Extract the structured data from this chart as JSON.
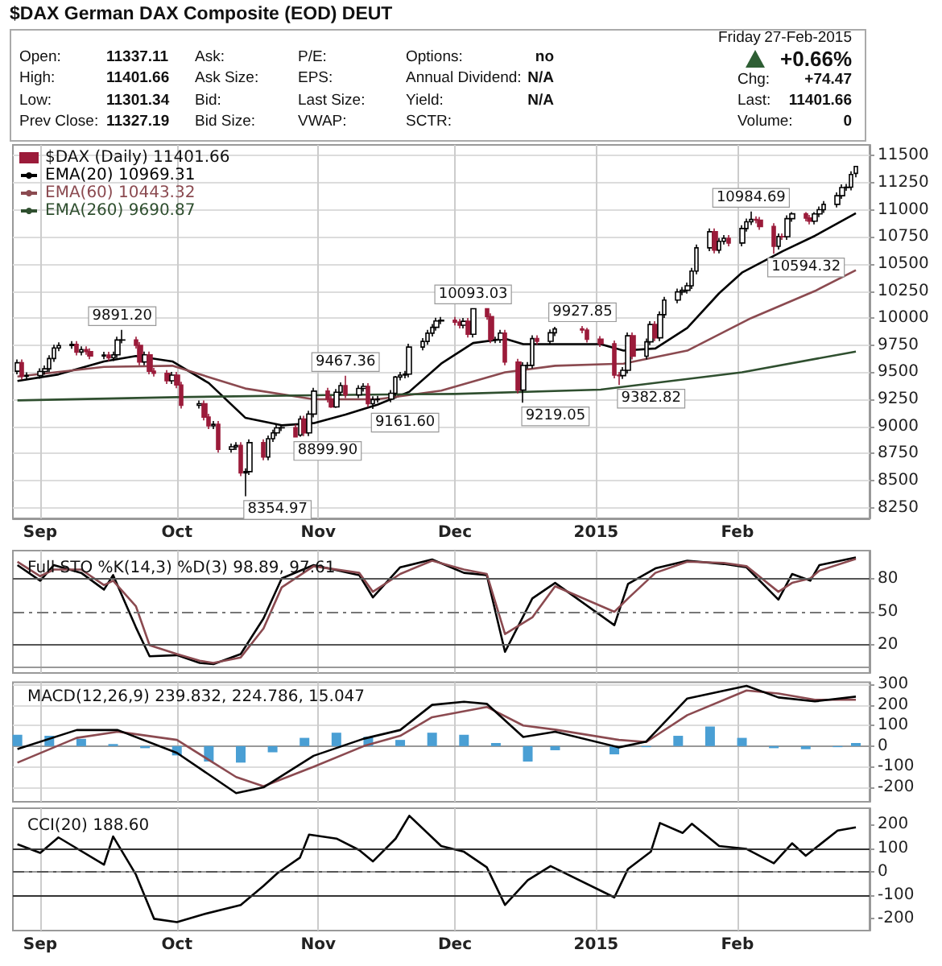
{
  "chart_data": [
    {
      "type": "other",
      "title": "$DAX German DAX Composite (EOD) DEUT",
      "annotations": [
        "Open:",
        "High:",
        "Low:",
        "Prev Close:",
        "11337.11",
        "11401.66",
        "11301.34",
        "11327.19",
        "Ask:",
        "Ask Size:",
        "Bid:",
        "Bid Size:",
        "P/E:",
        "EPS:",
        "Last Size:",
        "VWAP:",
        "Options:",
        "Annual Dividend:",
        "Yield:",
        "SCTR:",
        "no",
        "N/A",
        "N/A",
        "Friday",
        "27-Feb-2015",
        "+0.66%",
        "Chg:",
        "+74.47",
        "Last:",
        "11401.66",
        "Volume:",
        "0"
      ]
    },
    {
      "type": "candlestick",
      "legend": "top left",
      "grid": true,
      "xlim": [
        "2014-08-26",
        "2015-03-02"
      ],
      "xticks": [
        {
          "value": "2014-09-01",
          "label": "Sep"
        },
        {
          "value": "2014-10-01",
          "label": "Oct"
        },
        {
          "value": "2014-11-01",
          "label": "Nov"
        },
        {
          "value": "2014-12-01",
          "label": "Dec"
        },
        {
          "value": "2015-01-01",
          "label": "2015"
        },
        {
          "value": "2015-02-01",
          "label": "Feb"
        }
      ],
      "ylim": [
        8150,
        11600
      ],
      "yticks": [
        8250,
        8500,
        8750,
        9000,
        9250,
        9500,
        9750,
        10000,
        10250,
        10500,
        10750,
        11000,
        11250,
        11500
      ],
      "annotations": [
        {
          "text": "9891.20",
          "x": "2014-09-19",
          "y": 9891.2
        },
        {
          "text": "8354.97",
          "x": "2014-10-16",
          "y": 8354.97
        },
        {
          "text": "8899.90",
          "x": "2014-10-27",
          "y": 8899.9
        },
        {
          "text": "9467.36",
          "x": "2014-11-07",
          "y": 9467.36
        },
        {
          "text": "9161.60",
          "x": "2014-11-13",
          "y": 9161.6
        },
        {
          "text": "10093.03",
          "x": "2014-12-05",
          "y": 10093.03
        },
        {
          "text": "9219.05",
          "x": "2014-12-16",
          "y": 9219.05
        },
        {
          "text": "9927.85",
          "x": "2014-12-29",
          "y": 9927.85
        },
        {
          "text": "9382.82",
          "x": "2015-01-06",
          "y": 9382.82
        },
        {
          "text": "10984.69",
          "x": "2015-02-04",
          "y": 10984.69
        },
        {
          "text": "10594.32",
          "x": "2015-02-09",
          "y": 10594.32
        }
      ],
      "series": [
        {
          "type": "candlestick",
          "name": "$DAX (Daily) 11401.66",
          "colors": [
            "#ffffff",
            "#9b1b3a",
            "#ffffff",
            "#ffffff",
            "#ffffff",
            "#ffffff",
            "#ffffff",
            "#ffffff",
            "#ffffff",
            "#9b1b3a",
            "#ffffff",
            "#9b1b3a",
            "#9b1b3a",
            "#ffffff",
            "#9b1b3a",
            "#ffffff",
            "#ffffff",
            "#ffffff",
            "#9b1b3a",
            "#9b1b3a",
            "#ffffff",
            "#9b1b3a",
            "#9b1b3a",
            "#9b1b3a",
            "#ffffff",
            "#9b1b3a",
            "#9b1b3a",
            "#ffffff",
            "#9b1b3a",
            "#9b1b3a",
            "#ffffff",
            "#9b1b3a",
            "#ffffff",
            "#ffffff",
            "#9b1b3a",
            "#ffffff",
            "#ffffff",
            "#9b1b3a",
            "#ffffff",
            "#ffffff",
            "#ffffff",
            "#ffffff",
            "#9b1b3a",
            "#ffffff",
            "#9b1b3a",
            "#ffffff",
            "#ffffff",
            "#9b1b3a",
            "#9b1b3a",
            "#ffffff",
            "#ffffff",
            "#9b1b3a",
            "#ffffff",
            "#ffffff",
            "#9b1b3a",
            "#ffffff",
            "#ffffff",
            "#ffffff",
            "#ffffff",
            "#ffffff",
            "#ffffff",
            "#ffffff",
            "#ffffff",
            "#ffffff",
            "#ffffff",
            "#ffffff",
            "#ffffff",
            "#9b1b3a",
            "#9b1b3a",
            "#ffffff",
            "#9b1b3a",
            "#ffffff",
            "#9b1b3a",
            "#9b1b3a",
            "#ffffff",
            "#ffffff",
            "#9b1b3a",
            "#9b1b3a",
            "#ffffff",
            "#ffffff",
            "#ffffff",
            "#9b1b3a",
            "#ffffff",
            "#ffffff",
            "#9b1b3a",
            "#9b1b3a",
            "#9b1b3a",
            "#9b1b3a",
            "#9b1b3a",
            "#ffffff",
            "#ffffff",
            "#9b1b3a",
            "#ffffff",
            "#ffffff",
            "#9b1b3a",
            "#ffffff",
            "#ffffff",
            "#ffffff",
            "#ffffff",
            "#ffffff",
            "#ffffff",
            "#ffffff",
            "#ffffff",
            "#9b1b3a",
            "#ffffff",
            "#ffffff",
            "#9b1b3a",
            "#ffffff",
            "#ffffff",
            "#ffffff",
            "#9b1b3a",
            "#9b1b3a",
            "#9b1b3a",
            "#ffffff",
            "#9b1b3a",
            "#ffffff",
            "#ffffff",
            "#9b1b3a",
            "#9b1b3a",
            "#ffffff",
            "#ffffff",
            "#ffffff",
            "#ffffff",
            "#ffffff",
            "#ffffff",
            "#ffffff",
            "#ffffff"
          ],
          "x": [
            "2014-08-27",
            "2014-08-28",
            "2014-08-29",
            "2014-09-01",
            "2014-09-02",
            "2014-09-03",
            "2014-09-04",
            "2014-09-05",
            "2014-09-08",
            "2014-09-09",
            "2014-09-10",
            "2014-09-11",
            "2014-09-12",
            "2014-09-15",
            "2014-09-16",
            "2014-09-17",
            "2014-09-18",
            "2014-09-19",
            "2014-09-22",
            "2014-09-23",
            "2014-09-24",
            "2014-09-25",
            "2014-09-26",
            "2014-09-29",
            "2014-09-30",
            "2014-10-01",
            "2014-10-02",
            "2014-10-06",
            "2014-10-07",
            "2014-10-08",
            "2014-10-09",
            "2014-10-10",
            "2014-10-13",
            "2014-10-14",
            "2014-10-15",
            "2014-10-16",
            "2014-10-17",
            "2014-10-20",
            "2014-10-21",
            "2014-10-22",
            "2014-10-23",
            "2014-10-24",
            "2014-10-27",
            "2014-10-28",
            "2014-10-29",
            "2014-10-30",
            "2014-10-31",
            "2014-11-03",
            "2014-11-04",
            "2014-11-05",
            "2014-11-06",
            "2014-11-07",
            "2014-11-10",
            "2014-11-11",
            "2014-11-12",
            "2014-11-13",
            "2014-11-14",
            "2014-11-17",
            "2014-11-18",
            "2014-11-19",
            "2014-11-20",
            "2014-11-21",
            "2014-11-24",
            "2014-11-25",
            "2014-11-26",
            "2014-11-27",
            "2014-11-28",
            "2014-12-01",
            "2014-12-02",
            "2014-12-03",
            "2014-12-04",
            "2014-12-05",
            "2014-12-08",
            "2014-12-09",
            "2014-12-10",
            "2014-12-11",
            "2014-12-12",
            "2014-12-15",
            "2014-12-16",
            "2014-12-17",
            "2014-12-18",
            "2014-12-19",
            "2014-12-22",
            "2014-12-23",
            "2014-12-29",
            "2014-12-30",
            "2015-01-02",
            "2015-01-05",
            "2015-01-06",
            "2015-01-07",
            "2015-01-08",
            "2015-01-09",
            "2015-01-12",
            "2015-01-13",
            "2015-01-14",
            "2015-01-15",
            "2015-01-16",
            "2015-01-19",
            "2015-01-20",
            "2015-01-21",
            "2015-01-22",
            "2015-01-23",
            "2015-01-26",
            "2015-01-27",
            "2015-01-28",
            "2015-01-29",
            "2015-01-30",
            "2015-02-02",
            "2015-02-03",
            "2015-02-04",
            "2015-02-05",
            "2015-02-06",
            "2015-02-09",
            "2015-02-10",
            "2015-02-11",
            "2015-02-12",
            "2015-02-13",
            "2015-02-16",
            "2015-02-17",
            "2015-02-18",
            "2015-02-19",
            "2015-02-20",
            "2015-02-23",
            "2015-02-24",
            "2015-02-25",
            "2015-02-26",
            "2015-02-27"
          ],
          "ohlc": [
            [
              9510,
              9618,
              9480,
              9588
            ],
            [
              9588,
              9618,
              9432,
              9462
            ],
            [
              9462,
              9500,
              9432,
              9470
            ],
            [
              9470,
              9537,
              9440,
              9507
            ],
            [
              9507,
              9562,
              9477,
              9532
            ],
            [
              9532,
              9657,
              9502,
              9627
            ],
            [
              9627,
              9754,
              9597,
              9724
            ],
            [
              9724,
              9777,
              9694,
              9747
            ],
            [
              9747,
              9788,
              9717,
              9758
            ],
            [
              9758,
              9788,
              9656,
              9686
            ],
            [
              9686,
              9740,
              9656,
              9710
            ],
            [
              9710,
              9740,
              9661,
              9691
            ],
            [
              9691,
              9721,
              9621,
              9651
            ],
            [
              9651,
              9689,
              9621,
              9659
            ],
            [
              9659,
              9689,
              9603,
              9633
            ],
            [
              9633,
              9691,
              9603,
              9661
            ],
            [
              9661,
              9828,
              9631,
              9798
            ],
            [
              9798,
              9891.2,
              9768,
              9799
            ],
            [
              9799,
              9829,
              9719,
              9749
            ],
            [
              9749,
              9779,
              9565,
              9595
            ],
            [
              9595,
              9691,
              9565,
              9661
            ],
            [
              9661,
              9691,
              9480,
              9510
            ],
            [
              9510,
              9540,
              9460,
              9490
            ],
            [
              9490,
              9520,
              9392,
              9422
            ],
            [
              9422,
              9504,
              9392,
              9474
            ],
            [
              9474,
              9504,
              9352,
              9382
            ],
            [
              9382,
              9412,
              9165,
              9195
            ],
            [
              9195,
              9239,
              9165,
              9209
            ],
            [
              9209,
              9239,
              9056,
              9086
            ],
            [
              9086,
              9116,
              8975,
              9005
            ],
            [
              9005,
              9049,
              8975,
              9019
            ],
            [
              9019,
              9049,
              8758,
              8788
            ],
            [
              8788,
              8842,
              8758,
              8812
            ],
            [
              8812,
              8855,
              8782,
              8825
            ],
            [
              8825,
              8855,
              8541,
              8571
            ],
            [
              8571,
              8612,
              8354.97,
              8582
            ],
            [
              8582,
              8880,
              8552,
              8850
            ],
            [
              8850,
              8880,
              8687,
              8717
            ],
            [
              8717,
              8916,
              8687,
              8886
            ],
            [
              8886,
              8970,
              8856,
              8940
            ],
            [
              8940,
              9017,
              8910,
              8987
            ],
            [
              8987,
              9018,
              8957,
              8988
            ],
            [
              8988,
              9018,
              8899.9,
              8903
            ],
            [
              8920,
              9098,
              8905,
              9068
            ],
            [
              9068,
              9098,
              8910,
              8940
            ],
            [
              8940,
              9144,
              8910,
              9114
            ],
            [
              9114,
              9356,
              9084,
              9326
            ],
            [
              9326,
              9356,
              9221,
              9251
            ],
            [
              9251,
              9281,
              9170,
              9180
            ],
            [
              9180,
              9345,
              9170,
              9315
            ],
            [
              9315,
              9407,
              9285,
              9377
            ],
            [
              9377,
              9467.36,
              9261,
              9291
            ],
            [
              9291,
              9381,
              9261,
              9351
            ],
            [
              9351,
              9399,
              9321,
              9369
            ],
            [
              9369,
              9399,
              9180,
              9210
            ],
            [
              9210,
              9278,
              9161.6,
              9248
            ],
            [
              9248,
              9282,
              9218,
              9252
            ],
            [
              9252,
              9336,
              9222,
              9306
            ],
            [
              9306,
              9466,
              9276,
              9456
            ],
            [
              9456,
              9503,
              9426,
              9473
            ],
            [
              9473,
              9513,
              9443,
              9483
            ],
            [
              9483,
              9763,
              9453,
              9733
            ],
            [
              9733,
              9815,
              9703,
              9785
            ],
            [
              9785,
              9891,
              9755,
              9861
            ],
            [
              9861,
              9945,
              9831,
              9915
            ],
            [
              9915,
              10004,
              9885,
              9974
            ],
            [
              9974,
              10010,
              9944,
              9980
            ],
            [
              9980,
              10010,
              9933,
              9963
            ],
            [
              9963,
              9993,
              9904,
              9934
            ],
            [
              9934,
              10001,
              9904,
              9971
            ],
            [
              9971,
              10001,
              9821,
              9851
            ],
            [
              9851,
              10093.03,
              9821,
              10087
            ],
            [
              10087,
              10090,
              9984,
              10014
            ],
            [
              10014,
              10044,
              9769,
              9799
            ],
            [
              9799,
              9829,
              9769,
              9800
            ],
            [
              9800,
              9892,
              9770,
              9862
            ],
            [
              9862,
              9892,
              9564,
              9594
            ],
            [
              9594,
              9624,
              9305,
              9335
            ],
            [
              9335,
              9593,
              9219.05,
              9563
            ],
            [
              9563,
              9594,
              9533,
              9564
            ],
            [
              9564,
              9841,
              9534,
              9811
            ],
            [
              9811,
              9841,
              9756,
              9786
            ],
            [
              9786,
              9895,
              9756,
              9865
            ],
            [
              9865,
              9920,
              9835,
              9900
            ],
            [
              9900,
              9927.85,
              9860,
              9890
            ],
            [
              9890,
              9910,
              9775,
              9805
            ],
            [
              9805,
              9835,
              9734,
              9764
            ],
            [
              9764,
              9794,
              9443,
              9473
            ],
            [
              9473,
              9503,
              9382.82,
              9469
            ],
            [
              9469,
              9548,
              9439,
              9518
            ],
            [
              9518,
              9867,
              9488,
              9837
            ],
            [
              9837,
              9867,
              9618,
              9648
            ],
            [
              9648,
              9811,
              9618,
              9781
            ],
            [
              9781,
              9971,
              9751,
              9941
            ],
            [
              9941,
              9971,
              9788,
              9818
            ],
            [
              9818,
              10062,
              9788,
              10032
            ],
            [
              10032,
              10197,
              10002,
              10167
            ],
            [
              10167,
              10272,
              10137,
              10242
            ],
            [
              10242,
              10287,
              10212,
              10257
            ],
            [
              10257,
              10329,
              10227,
              10299
            ],
            [
              10299,
              10465,
              10269,
              10435
            ],
            [
              10435,
              10679,
              10405,
              10649
            ],
            [
              10649,
              10828,
              10619,
              10798
            ],
            [
              10798,
              10828,
              10598,
              10628
            ],
            [
              10628,
              10740,
              10598,
              10710
            ],
            [
              10710,
              10768,
              10680,
              10738
            ],
            [
              10738,
              10768,
              10664,
              10694
            ],
            [
              10694,
              10858,
              10664,
              10828
            ],
            [
              10828,
              10920,
              10798,
              10890
            ],
            [
              10890,
              10984.69,
              10860,
              10911
            ],
            [
              10911,
              10941,
              10875,
              10905
            ],
            [
              10905,
              10935,
              10816,
              10846
            ],
            [
              10846,
              10876,
              10594.32,
              10663
            ],
            [
              10663,
              10783,
              10633,
              10753
            ],
            [
              10753,
              10783,
              10722,
              10752
            ],
            [
              10752,
              10949,
              10722,
              10919
            ],
            [
              10919,
              10980,
              10889,
              10963
            ],
            [
              10963,
              10980,
              10894,
              10924
            ],
            [
              10924,
              10954,
              10865,
              10895
            ],
            [
              10895,
              10980,
              10865,
              10962
            ],
            [
              10962,
              11032,
              10932,
              11002
            ],
            [
              11002,
              11081,
              10972,
              11051
            ],
            [
              11051,
              11161,
              11021,
              11131
            ],
            [
              11131,
              11236,
              11101,
              11206
            ],
            [
              11206,
              11240,
              11176,
              11210
            ],
            [
              11210,
              11357,
              11180,
              11327.19
            ],
            [
              11337.11,
              11401.66,
              11301.34,
              11401.66
            ]
          ]
        },
        {
          "type": "line",
          "name": "EMA(20) 10969.31",
          "color": "#000000",
          "x": [
            "2014-08-27",
            "2014-09-05",
            "2014-09-15",
            "2014-09-22",
            "2014-09-30",
            "2014-10-08",
            "2014-10-16",
            "2014-10-24",
            "2014-10-31",
            "2014-11-07",
            "2014-11-14",
            "2014-11-21",
            "2014-11-28",
            "2014-12-05",
            "2014-12-12",
            "2014-12-16",
            "2014-12-23",
            "2015-01-02",
            "2015-01-07",
            "2015-01-14",
            "2015-01-21",
            "2015-01-28",
            "2015-02-02",
            "2015-02-11",
            "2015-02-18",
            "2015-02-27"
          ],
          "values": [
            9420,
            9480,
            9600,
            9650,
            9600,
            9400,
            9080,
            9010,
            9030,
            9110,
            9200,
            9320,
            9580,
            9770,
            9810,
            9760,
            9760,
            9760,
            9700,
            9720,
            9910,
            10230,
            10420,
            10620,
            10760,
            10969.31
          ]
        },
        {
          "type": "line",
          "name": "EMA(60) 10443.32",
          "color": "#8b4a50",
          "x": [
            "2014-08-27",
            "2014-09-15",
            "2014-09-30",
            "2014-10-16",
            "2014-10-31",
            "2014-11-14",
            "2014-11-28",
            "2014-12-12",
            "2014-12-23",
            "2015-01-07",
            "2015-01-21",
            "2015-02-04",
            "2015-02-18",
            "2015-02-27"
          ],
          "values": [
            9460,
            9550,
            9560,
            9350,
            9250,
            9250,
            9330,
            9500,
            9560,
            9580,
            9700,
            10000,
            10250,
            10443.32
          ]
        },
        {
          "type": "line",
          "name": "EMA(260) 9690.87",
          "color": "#2f4f2f",
          "x": [
            "2014-08-27",
            "2014-10-01",
            "2014-11-03",
            "2014-12-01",
            "2015-01-02",
            "2015-02-02",
            "2015-02-27"
          ],
          "values": [
            9240,
            9270,
            9290,
            9300,
            9340,
            9500,
            9690.87
          ]
        }
      ]
    },
    {
      "type": "line",
      "title": "Full STO %K(14,3) %D(3) 98.89, 97.61",
      "grid": "x",
      "tick_labels": "y",
      "xlim": [
        "2014-08-26",
        "2015-03-02"
      ],
      "xticks": [
        {
          "value": "2014-09-01",
          "label": null
        },
        {
          "value": "2014-10-01",
          "label": null
        },
        {
          "value": "2014-11-01",
          "label": null
        },
        {
          "value": "2014-12-01",
          "label": null
        },
        {
          "value": "2015-01-01",
          "label": null
        },
        {
          "value": "2015-02-01",
          "label": null
        }
      ],
      "ylim": [
        -5,
        105
      ],
      "yticks": [
        20,
        50,
        80
      ],
      "ref_lines": [
        {
          "axis": "y",
          "value": 80,
          "color": "#555555"
        },
        {
          "axis": "y",
          "value": 50,
          "color": "#777777",
          "line_style": "dashed"
        },
        {
          "axis": "y",
          "value": 20,
          "color": "#555555"
        }
      ],
      "x": [
        "2014-08-27",
        "2014-09-01",
        "2014-09-04",
        "2014-09-10",
        "2014-09-15",
        "2014-09-17",
        "2014-09-22",
        "2014-09-25",
        "2014-10-01",
        "2014-10-06",
        "2014-10-09",
        "2014-10-15",
        "2014-10-20",
        "2014-10-24",
        "2014-10-31",
        "2014-11-10",
        "2014-11-13",
        "2014-11-19",
        "2014-11-26",
        "2014-12-03",
        "2014-12-08",
        "2014-12-12",
        "2014-12-18",
        "2014-12-23",
        "2015-01-05",
        "2015-01-08",
        "2015-01-14",
        "2015-01-21",
        "2015-01-29",
        "2015-02-03",
        "2015-02-10",
        "2015-02-13",
        "2015-02-17",
        "2015-02-19",
        "2015-02-27"
      ],
      "series": [
        {
          "color": "#000000",
          "values": [
            92,
            78,
            92,
            85,
            70,
            83,
            36,
            10,
            11,
            4,
            3,
            12,
            44,
            80,
            92,
            83,
            63,
            90,
            97,
            85,
            83,
            14,
            62,
            76,
            38,
            75,
            89,
            96,
            93,
            90,
            61,
            84,
            78,
            92,
            98.89
          ]
        },
        {
          "color": "#8b4a50",
          "values": [
            95,
            82,
            88,
            88,
            74,
            78,
            55,
            20,
            12,
            6,
            4,
            9,
            35,
            72,
            91,
            85,
            68,
            84,
            96,
            88,
            84,
            30,
            45,
            73,
            50,
            62,
            85,
            95,
            94,
            91,
            68,
            76,
            80,
            87,
            97.61
          ]
        }
      ]
    },
    {
      "type": "line",
      "title": "MACD(12,26,9) 239.832, 224.786, 15.047",
      "grid": true,
      "tick_labels": "y",
      "xlim": [
        "2014-08-26",
        "2015-03-02"
      ],
      "xticks": [
        {
          "value": "2014-09-01",
          "label": null
        },
        {
          "value": "2014-10-01",
          "label": null
        },
        {
          "value": "2014-11-01",
          "label": null
        },
        {
          "value": "2014-12-01",
          "label": null
        },
        {
          "value": "2015-01-01",
          "label": null
        },
        {
          "value": "2015-02-01",
          "label": null
        }
      ],
      "ylim": [
        -270,
        310
      ],
      "yticks": [
        -200,
        -100,
        0,
        100,
        200,
        300
      ],
      "series": [
        {
          "type": "bar",
          "color": "#4a9fd4",
          "x": [
            "2014-08-27",
            "2014-09-03",
            "2014-09-10",
            "2014-09-17",
            "2014-09-24",
            "2014-10-01",
            "2014-10-08",
            "2014-10-15",
            "2014-10-22",
            "2014-10-29",
            "2014-11-05",
            "2014-11-12",
            "2014-11-19",
            "2014-11-26",
            "2014-12-03",
            "2014-12-10",
            "2014-12-17",
            "2014-12-23",
            "2015-01-05",
            "2015-01-12",
            "2015-01-19",
            "2015-01-26",
            "2015-02-02",
            "2015-02-09",
            "2015-02-16",
            "2015-02-23",
            "2015-02-27"
          ],
          "values": [
            55,
            50,
            35,
            10,
            -10,
            -45,
            -75,
            -80,
            -30,
            40,
            65,
            45,
            30,
            65,
            55,
            15,
            -75,
            -20,
            -40,
            -5,
            50,
            95,
            40,
            -10,
            -15,
            -5,
            15.047
          ]
        },
        {
          "color": "#8b4a50",
          "x": [
            "2014-08-27",
            "2014-09-09",
            "2014-09-18",
            "2014-10-01",
            "2014-10-14",
            "2014-10-20",
            "2014-10-31",
            "2014-11-11",
            "2014-11-19",
            "2014-11-26",
            "2014-12-08",
            "2014-12-16",
            "2014-12-23",
            "2015-01-06",
            "2015-01-12",
            "2015-01-21",
            "2015-02-03",
            "2015-02-10",
            "2015-02-18",
            "2015-02-27"
          ],
          "values": [
            -80,
            40,
            70,
            30,
            -150,
            -195,
            -100,
            0,
            50,
            140,
            190,
            100,
            80,
            30,
            20,
            150,
            270,
            255,
            225,
            224.786
          ]
        },
        {
          "color": "#000000",
          "x": [
            "2014-08-27",
            "2014-09-09",
            "2014-09-18",
            "2014-10-01",
            "2014-10-14",
            "2014-10-20",
            "2014-10-31",
            "2014-11-11",
            "2014-11-19",
            "2014-11-26",
            "2014-12-03",
            "2014-12-08",
            "2014-12-16",
            "2014-12-23",
            "2015-01-06",
            "2015-01-12",
            "2015-01-21",
            "2015-02-03",
            "2015-02-10",
            "2015-02-18",
            "2015-02-27"
          ],
          "values": [
            -14,
            78,
            78,
            -33,
            -228,
            -200,
            -47,
            36,
            78,
            200,
            215,
            205,
            44,
            70,
            -6,
            22,
            231,
            292,
            236,
            217,
            239.832
          ]
        }
      ]
    },
    {
      "type": "line",
      "title": "CCI(20) 188.60",
      "grid": "x",
      "xlim": [
        "2014-08-26",
        "2015-03-02"
      ],
      "xticks": [
        {
          "value": "2014-09-01",
          "label": "Sep"
        },
        {
          "value": "2014-10-01",
          "label": "Oct"
        },
        {
          "value": "2014-11-01",
          "label": "Nov"
        },
        {
          "value": "2014-12-01",
          "label": "Dec"
        },
        {
          "value": "2015-01-01",
          "label": "2015"
        },
        {
          "value": "2015-02-01",
          "label": "Feb"
        }
      ],
      "ylim": [
        -250,
        270
      ],
      "yticks": [
        -200,
        -100,
        0,
        100,
        200
      ],
      "ref_lines": [
        {
          "axis": "y",
          "value": 100,
          "color": "#333333"
        },
        {
          "axis": "y",
          "value": 0,
          "color": "#555555",
          "line_style": "dashed"
        },
        {
          "axis": "y",
          "value": -100,
          "color": "#333333"
        }
      ],
      "series": [
        {
          "color": "#000000",
          "x": [
            "2014-08-27",
            "2014-09-01",
            "2014-09-05",
            "2014-09-15",
            "2014-09-17",
            "2014-09-22",
            "2014-09-26",
            "2014-10-01",
            "2014-10-07",
            "2014-10-15",
            "2014-10-20",
            "2014-10-23",
            "2014-10-28",
            "2014-10-30",
            "2014-11-05",
            "2014-11-10",
            "2014-11-13",
            "2014-11-18",
            "2014-11-21",
            "2014-11-28",
            "2014-12-03",
            "2014-12-08",
            "2014-12-12",
            "2014-12-17",
            "2014-12-22",
            "2015-01-05",
            "2015-01-08",
            "2015-01-13",
            "2015-01-15",
            "2015-01-20",
            "2015-01-22",
            "2015-01-28",
            "2015-02-03",
            "2015-02-09",
            "2015-02-13",
            "2015-02-16",
            "2015-02-23",
            "2015-02-27"
          ],
          "values": [
            117,
            80,
            146,
            30,
            150,
            -12,
            -200,
            -214,
            -180,
            -141,
            -60,
            -7,
            60,
            158,
            141,
            92,
            44,
            141,
            238,
            109,
            85,
            19,
            -141,
            -36,
            24,
            -109,
            12,
            85,
            207,
            165,
            204,
            109,
            97,
            36,
            121,
            68,
            175,
            188.6
          ]
        }
      ]
    }
  ]
}
